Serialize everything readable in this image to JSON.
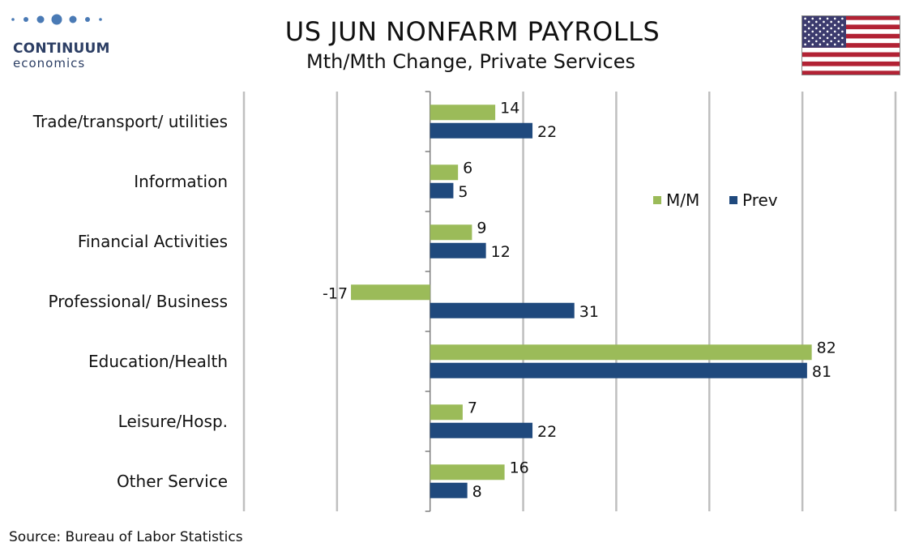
{
  "header": {
    "logo_line1": "CONTINUUM",
    "logo_line2": "economics",
    "title": "US JUN NONFARM PAYROLLS",
    "subtitle": "Mth/Mth Change, Private Services"
  },
  "footer": {
    "source": "Source: Bureau of Labor Statistics"
  },
  "colors": {
    "mm": "#9bbb59",
    "prev": "#1f497d",
    "grid": "#bfbfbf",
    "axis": "#7f7f7f",
    "logo": "#2c3e64",
    "flag_red": "#b22234",
    "flag_blue": "#3c3b6e"
  },
  "chart_data": {
    "type": "bar",
    "orientation": "horizontal",
    "categories": [
      "Trade/transport/ utilities",
      "Information",
      "Financial Activities",
      "Professional/ Business",
      "Education/Health",
      "Leisure/Hosp.",
      "Other Service"
    ],
    "series": [
      {
        "name": "M/M",
        "values": [
          14,
          6,
          9,
          -17,
          82,
          7,
          16
        ]
      },
      {
        "name": "Prev",
        "values": [
          22,
          5,
          12,
          31,
          81,
          22,
          8
        ]
      }
    ],
    "xlim": [
      -40,
      100
    ],
    "xticks": [
      -40,
      -20,
      0,
      20,
      40,
      60,
      80,
      100
    ],
    "grid": true,
    "legend_position": "top-right",
    "data_labels": true
  }
}
